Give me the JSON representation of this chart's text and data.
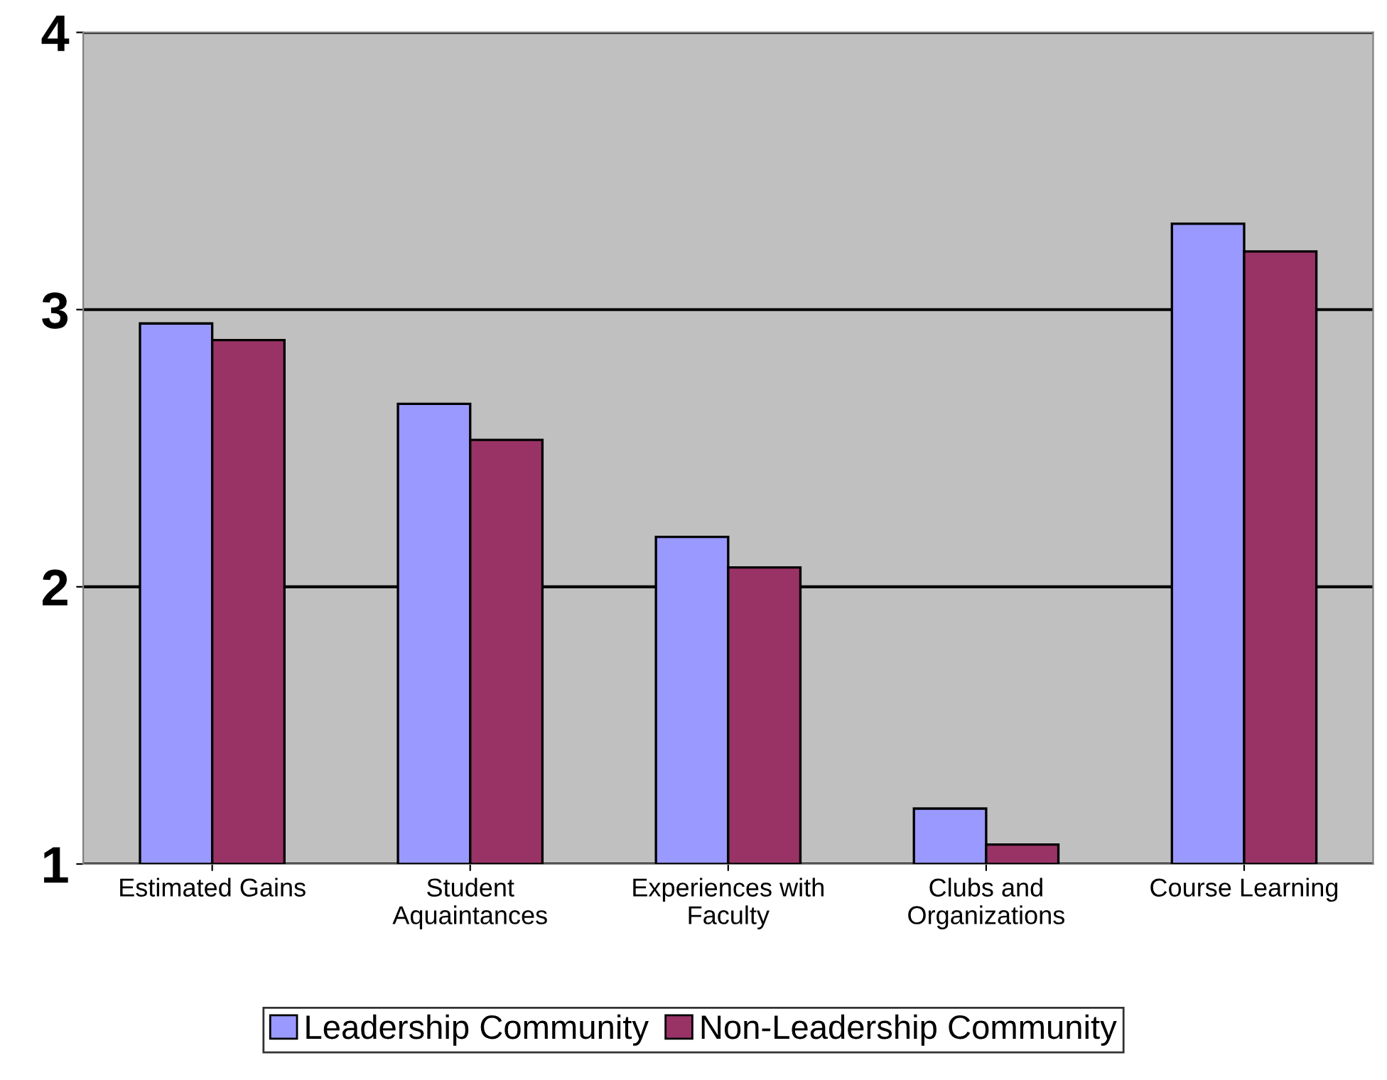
{
  "chart_data": {
    "type": "bar",
    "categories": [
      "Estimated Gains",
      "Student\nAquaintances",
      "Experiences with\nFaculty",
      "Clubs and\nOrganizations",
      "Course Learning"
    ],
    "series": [
      {
        "name": "Leadership Community",
        "color": "#9999ff",
        "values": [
          2.95,
          2.66,
          2.18,
          1.2,
          3.31
        ]
      },
      {
        "name": "Non-Leadership Community",
        "color": "#993366",
        "values": [
          2.89,
          2.53,
          2.07,
          1.07,
          3.21
        ]
      }
    ],
    "ylim": [
      1,
      4
    ],
    "yticks": [
      1,
      2,
      3,
      4
    ],
    "grid": "y",
    "legend": "bottom"
  }
}
